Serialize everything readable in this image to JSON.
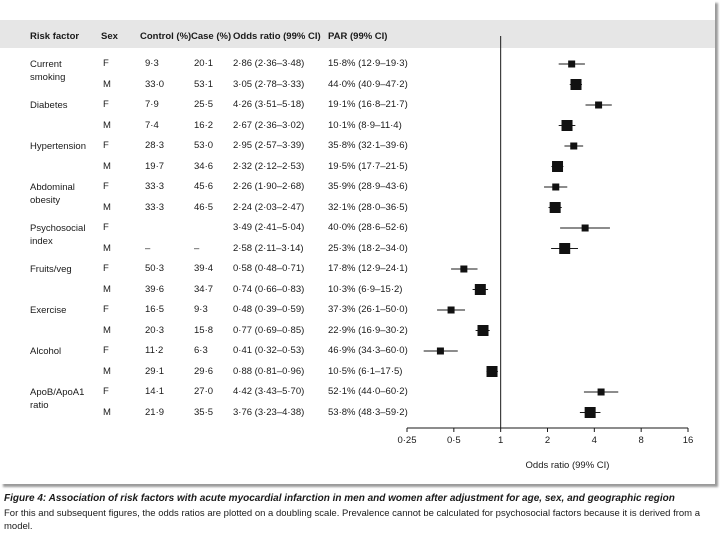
{
  "headers": {
    "risk_factor": "Risk factor",
    "sex": "Sex",
    "control": "Control (%)",
    "case": "Case (%)",
    "odds_ratio": "Odds ratio (99% CI)",
    "par": "PAR (99% CI)"
  },
  "rows": [
    {
      "factor": "Current smoking",
      "sex": "F",
      "control": "9·3",
      "case": "20·1",
      "or_text": "2·86 (2·36–3·48)",
      "par": "15·8% (12·9–19·3)"
    },
    {
      "factor": "",
      "sex": "M",
      "control": "33·0",
      "case": "53·1",
      "or_text": "3·05 (2·78–3·33)",
      "par": "44·0% (40·9–47·2)"
    },
    {
      "factor": "Diabetes",
      "sex": "F",
      "control": "7·9",
      "case": "25·5",
      "or_text": "4·26 (3·51–5·18)",
      "par": "19·1% (16·8–21·7)"
    },
    {
      "factor": "",
      "sex": "M",
      "control": "7·4",
      "case": "16·2",
      "or_text": "2·67 (2·36–3·02)",
      "par": "10·1% (8·9–11·4)"
    },
    {
      "factor": "Hypertension",
      "sex": "F",
      "control": "28·3",
      "case": "53·0",
      "or_text": "2·95 (2·57–3·39)",
      "par": "35·8% (32·1–39·6)"
    },
    {
      "factor": "",
      "sex": "M",
      "control": "19·7",
      "case": "34·6",
      "or_text": "2·32 (2·12–2·53)",
      "par": "19·5% (17·7–21·5)"
    },
    {
      "factor": "Abdominal obesity",
      "sex": "F",
      "control": "33·3",
      "case": "45·6",
      "or_text": "2·26 (1·90–2·68)",
      "par": "35·9% (28·9–43·6)"
    },
    {
      "factor": "",
      "sex": "M",
      "control": "33·3",
      "case": "46·5",
      "or_text": "2·24 (2·03–2·47)",
      "par": "32·1% (28·0–36·5)"
    },
    {
      "factor": "Psychosocial index",
      "sex": "F",
      "control": "",
      "case": "",
      "or_text": "3·49 (2·41–5·04)",
      "par": "40·0% (28·6–52·6)"
    },
    {
      "factor": "",
      "sex": "M",
      "control": "–",
      "case": "–",
      "or_text": "2·58 (2·11–3·14)",
      "par": "25·3% (18·2–34·0)"
    },
    {
      "factor": "Fruits/veg",
      "sex": "F",
      "control": "50·3",
      "case": "39·4",
      "or_text": "0·58 (0·48–0·71)",
      "par": "17·8% (12·9–24·1)"
    },
    {
      "factor": "",
      "sex": "M",
      "control": "39·6",
      "case": "34·7",
      "or_text": "0·74 (0·66–0·83)",
      "par": "10·3% (6·9–15·2)"
    },
    {
      "factor": "Exercise",
      "sex": "F",
      "control": "16·5",
      "case": "9·3",
      "or_text": "0·48 (0·39–0·59)",
      "par": "37·3% (26·1–50·0)"
    },
    {
      "factor": "",
      "sex": "M",
      "control": "20·3",
      "case": "15·8",
      "or_text": "0·77 (0·69–0·85)",
      "par": "22·9% (16·9–30·2)"
    },
    {
      "factor": "Alcohol",
      "sex": "F",
      "control": "11·2",
      "case": "6·3",
      "or_text": "0·41 (0·32–0·53)",
      "par": "46·9% (34·3–60·0)"
    },
    {
      "factor": "",
      "sex": "M",
      "control": "29·1",
      "case": "29·6",
      "or_text": "0·88 (0·81–0·96)",
      "par": "10·5% (6·1–17·5)"
    },
    {
      "factor": "ApoB/ApoA1 ratio",
      "sex": "F",
      "control": "14·1",
      "case": "27·0",
      "or_text": "4·42 (3·43–5·70)",
      "par": "52·1% (44·0–60·2)"
    },
    {
      "factor": "",
      "sex": "M",
      "control": "21·9",
      "case": "35·5",
      "or_text": "3·76 (3·23–4·38)",
      "par": "53·8% (48·3–59·2)"
    }
  ],
  "chart_data": {
    "type": "scatter",
    "subtype": "forest_plot",
    "x_scale": "log2",
    "xlabel": "Odds ratio (99% CI)",
    "xlim": [
      0.25,
      16
    ],
    "ticks": [
      0.25,
      0.5,
      1,
      2,
      4,
      8,
      16
    ],
    "tick_labels": [
      "0·25",
      "0·5",
      "1",
      "2",
      "4",
      "8",
      "16"
    ],
    "reference_line": 1,
    "series": [
      {
        "label": "Current smoking F",
        "or": 2.86,
        "lo": 2.36,
        "hi": 3.48,
        "marker": "small"
      },
      {
        "label": "Current smoking M",
        "or": 3.05,
        "lo": 2.78,
        "hi": 3.33,
        "marker": "large"
      },
      {
        "label": "Diabetes F",
        "or": 4.26,
        "lo": 3.51,
        "hi": 5.18,
        "marker": "small"
      },
      {
        "label": "Diabetes M",
        "or": 2.67,
        "lo": 2.36,
        "hi": 3.02,
        "marker": "large"
      },
      {
        "label": "Hypertension F",
        "or": 2.95,
        "lo": 2.57,
        "hi": 3.39,
        "marker": "small"
      },
      {
        "label": "Hypertension M",
        "or": 2.32,
        "lo": 2.12,
        "hi": 2.53,
        "marker": "large"
      },
      {
        "label": "Abdominal obesity F",
        "or": 2.26,
        "lo": 1.9,
        "hi": 2.68,
        "marker": "small"
      },
      {
        "label": "Abdominal obesity M",
        "or": 2.24,
        "lo": 2.03,
        "hi": 2.47,
        "marker": "large"
      },
      {
        "label": "Psychosocial index F",
        "or": 3.49,
        "lo": 2.41,
        "hi": 5.04,
        "marker": "small"
      },
      {
        "label": "Psychosocial index M",
        "or": 2.58,
        "lo": 2.11,
        "hi": 3.14,
        "marker": "large"
      },
      {
        "label": "Fruits/veg F",
        "or": 0.58,
        "lo": 0.48,
        "hi": 0.71,
        "marker": "small"
      },
      {
        "label": "Fruits/veg M",
        "or": 0.74,
        "lo": 0.66,
        "hi": 0.83,
        "marker": "large"
      },
      {
        "label": "Exercise F",
        "or": 0.48,
        "lo": 0.39,
        "hi": 0.59,
        "marker": "small"
      },
      {
        "label": "Exercise M",
        "or": 0.77,
        "lo": 0.69,
        "hi": 0.85,
        "marker": "large"
      },
      {
        "label": "Alcohol F",
        "or": 0.41,
        "lo": 0.32,
        "hi": 0.53,
        "marker": "small"
      },
      {
        "label": "Alcohol M",
        "or": 0.88,
        "lo": 0.81,
        "hi": 0.96,
        "marker": "large"
      },
      {
        "label": "ApoB/ApoA1 ratio F",
        "or": 4.42,
        "lo": 3.43,
        "hi": 5.7,
        "marker": "small"
      },
      {
        "label": "ApoB/ApoA1 ratio M",
        "or": 3.76,
        "lo": 3.23,
        "hi": 4.38,
        "marker": "large"
      }
    ]
  },
  "caption": {
    "title": "Figure 4: Association of risk factors with acute myocardial infarction in men and women after adjustment for age, sex, and geographic region",
    "note": "For this and subsequent figures, the odds ratios are plotted on a doubling scale. Prevalence cannot be calculated for psychosocial factors because it is derived from a model."
  }
}
